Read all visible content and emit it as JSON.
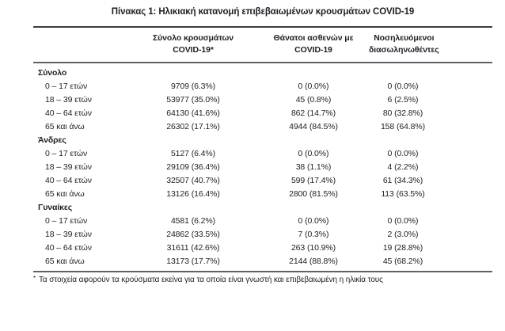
{
  "title": "Πίνακας 1: Ηλικιακή κατανομή επιβεβαιωμένων κρουσμάτων COVID-19",
  "table": {
    "headers": [
      {
        "line1": "Σύνολο κρουσμάτων",
        "line2": "COVID-19*"
      },
      {
        "line1": "Θάνατοι ασθενών με",
        "line2": "COVID-19"
      },
      {
        "line1": "Νοσηλευόμενοι",
        "line2": "διασωληνωθέντες"
      }
    ],
    "sections": [
      {
        "label": "Σύνολο",
        "rows": [
          {
            "age": "0 – 17 ετών",
            "cases": "9709 (6.3%)",
            "deaths": "0 (0.0%)",
            "intubated": "0 (0.0%)"
          },
          {
            "age": "18 – 39 ετών",
            "cases": "53977 (35.0%)",
            "deaths": "45 (0.8%)",
            "intubated": "6 (2.5%)"
          },
          {
            "age": "40 – 64 ετών",
            "cases": "64130 (41.6%)",
            "deaths": "862 (14.7%)",
            "intubated": "80 (32.8%)"
          },
          {
            "age": "65 και άνω",
            "cases": "26302 (17.1%)",
            "deaths": "4944 (84.5%)",
            "intubated": "158 (64.8%)"
          }
        ]
      },
      {
        "label": "Άνδρες",
        "rows": [
          {
            "age": "0 – 17 ετών",
            "cases": "5127 (6.4%)",
            "deaths": "0 (0.0%)",
            "intubated": "0 (0.0%)"
          },
          {
            "age": "18 – 39 ετών",
            "cases": "29109 (36.4%)",
            "deaths": "38 (1.1%)",
            "intubated": "4 (2.2%)"
          },
          {
            "age": "40 – 64 ετών",
            "cases": "32507 (40.7%)",
            "deaths": "599 (17.4%)",
            "intubated": "61 (34.3%)"
          },
          {
            "age": "65 και άνω",
            "cases": "13126 (16.4%)",
            "deaths": "2800 (81.5%)",
            "intubated": "113 (63.5%)"
          }
        ]
      },
      {
        "label": "Γυναίκες",
        "rows": [
          {
            "age": "0 – 17 ετών",
            "cases": "4581 (6.2%)",
            "deaths": "0 (0.0%)",
            "intubated": "0 (0.0%)"
          },
          {
            "age": "18 – 39 ετών",
            "cases": "24862 (33.5%)",
            "deaths": "7 (0.3%)",
            "intubated": "2 (3.0%)"
          },
          {
            "age": "40 – 64 ετών",
            "cases": "31611 (42.6%)",
            "deaths": "263 (10.9%)",
            "intubated": "19 (28.8%)"
          },
          {
            "age": "65 και άνω",
            "cases": "13173 (17.7%)",
            "deaths": "2144 (88.8%)",
            "intubated": "45 (68.2%)"
          }
        ]
      }
    ]
  },
  "footnote": {
    "marker": "*",
    "text": "Τα στοιχεία αφορούν τα κρούσματα εκείνα για τα οποία είναι γνωστή και επιβεβαιωμένη η ηλικία τους"
  },
  "colors": {
    "text": "#1d1f26",
    "rule_dark": "#3c3d3f",
    "rule_gray": "#606164",
    "background": "#ffffff"
  }
}
